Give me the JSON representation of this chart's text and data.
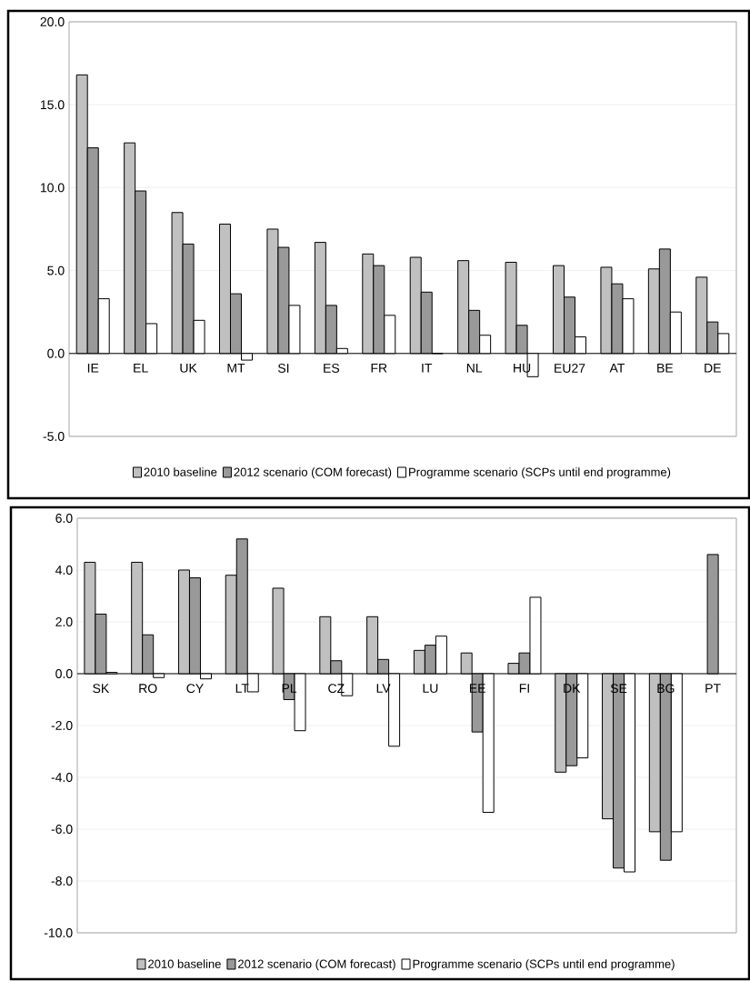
{
  "chart_data": [
    {
      "type": "bar",
      "categories": [
        "IE",
        "EL",
        "UK",
        "MT",
        "SI",
        "ES",
        "FR",
        "IT",
        "NL",
        "HU",
        "EU27",
        "AT",
        "BE",
        "DE"
      ],
      "series": [
        {
          "name": "2010 baseline",
          "color": "#c0c0c0",
          "values": [
            16.8,
            12.7,
            8.5,
            7.8,
            7.5,
            6.7,
            6.0,
            5.8,
            5.6,
            5.5,
            5.3,
            5.2,
            5.1,
            4.6
          ]
        },
        {
          "name": "2012 scenario (COM forecast)",
          "color": "#999999",
          "values": [
            12.4,
            9.8,
            6.6,
            3.6,
            6.4,
            2.9,
            5.3,
            3.7,
            2.6,
            1.7,
            3.4,
            4.2,
            6.3,
            1.9
          ]
        },
        {
          "name": "Programme scenario (SCPs until end programme)",
          "color": "#ffffff",
          "values": [
            3.3,
            1.8,
            2.0,
            -0.4,
            2.9,
            0.3,
            2.3,
            0.0,
            1.1,
            -1.4,
            1.0,
            3.3,
            2.5,
            1.2
          ]
        }
      ],
      "ylim": [
        -5,
        20
      ],
      "yticks": [
        {
          "value": -5,
          "label": "-5.0"
        },
        {
          "value": 0,
          "label": "0.0"
        },
        {
          "value": 5,
          "label": "5.0"
        },
        {
          "value": 10,
          "label": "10.0"
        },
        {
          "value": 15,
          "label": "15.0"
        },
        {
          "value": 20,
          "label": "20.0"
        }
      ],
      "grid": "y",
      "legend": "bottom"
    },
    {
      "type": "bar",
      "categories": [
        "SK",
        "RO",
        "CY",
        "LT",
        "PL",
        "CZ",
        "LV",
        "LU",
        "EE",
        "FI",
        "DK",
        "SE",
        "BG",
        "PT"
      ],
      "series": [
        {
          "name": "2010 baseline",
          "color": "#c0c0c0",
          "values": [
            4.3,
            4.3,
            4.0,
            3.8,
            3.3,
            2.2,
            2.2,
            0.9,
            0.8,
            0.4,
            -3.8,
            -5.6,
            -6.1,
            null
          ]
        },
        {
          "name": "2012 scenario (COM forecast)",
          "color": "#999999",
          "values": [
            2.3,
            1.5,
            3.7,
            5.2,
            -1.0,
            0.5,
            0.55,
            1.1,
            -2.25,
            0.8,
            -3.55,
            -7.5,
            -7.2,
            4.6
          ]
        },
        {
          "name": "Programme scenario (SCPs until end programme)",
          "color": "#ffffff",
          "values": [
            0.05,
            -0.15,
            -0.2,
            -0.7,
            -2.2,
            -0.85,
            -2.8,
            1.45,
            -5.35,
            2.95,
            -3.25,
            -7.65,
            -6.1,
            null
          ]
        }
      ],
      "ylim": [
        -10,
        6
      ],
      "yticks": [
        {
          "value": -10,
          "label": "-10.0"
        },
        {
          "value": -8,
          "label": "-8.0"
        },
        {
          "value": -6,
          "label": "-6.0"
        },
        {
          "value": -4,
          "label": "-4.0"
        },
        {
          "value": -2,
          "label": "-2.0"
        },
        {
          "value": 0,
          "label": "0.0"
        },
        {
          "value": 2,
          "label": "2.0"
        },
        {
          "value": 4,
          "label": "4.0"
        },
        {
          "value": 6,
          "label": "6.0"
        }
      ],
      "grid": "y",
      "legend": "bottom"
    }
  ]
}
